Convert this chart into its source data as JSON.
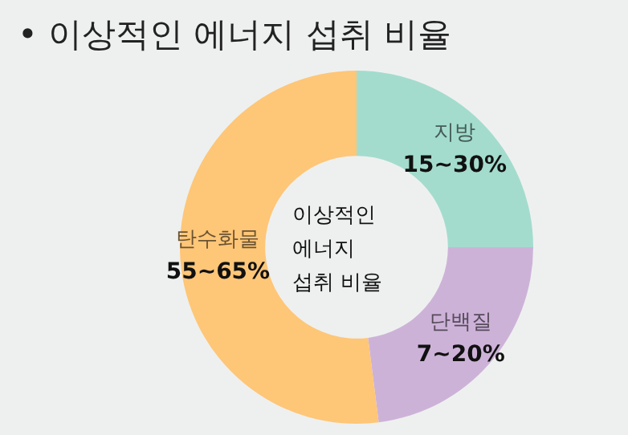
{
  "chart_data": {
    "type": "donut",
    "title": "• 이상적인 에너지 섭취 비율",
    "categories": [
      "지방\n15~30%",
      "단백질\n7~20%",
      "탄수화물\n55~65%"
    ],
    "values": [
      25,
      23,
      52
    ],
    "colors": [
      "#a3dccd",
      "#cdb2d8",
      "#fec677"
    ],
    "annotations": [
      "이상적인\n에너지\n섭취 비율"
    ],
    "legend": false
  }
}
